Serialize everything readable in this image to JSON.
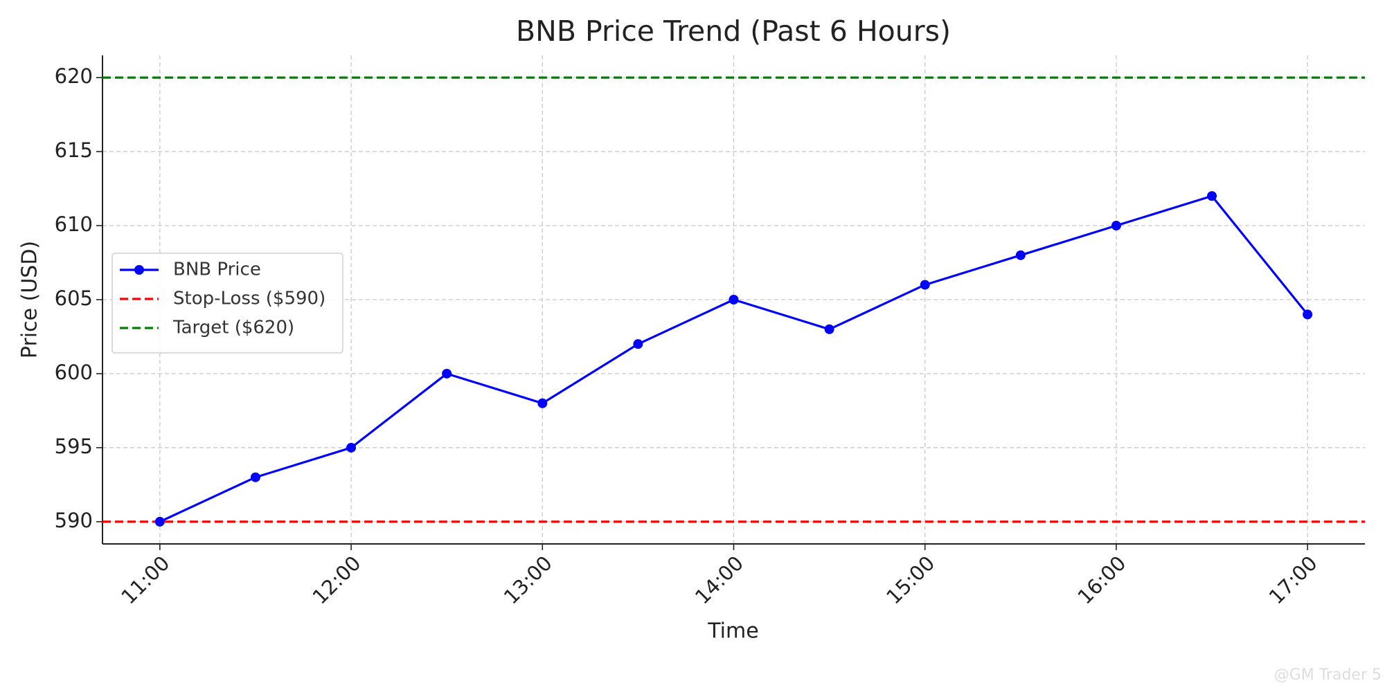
{
  "chart_data": {
    "type": "line",
    "title": "BNB Price Trend (Past 6 Hours)",
    "x_label": "Time",
    "y_label": "Price (USD)",
    "categories": [
      "11:00",
      null,
      "12:00",
      null,
      "13:00",
      null,
      "14:00",
      null,
      "15:00",
      null,
      "16:00",
      null,
      "17:00"
    ],
    "series": [
      {
        "name": "BNB Price",
        "color": "#0000ff",
        "values": [
          590,
          593,
          595,
          600,
          598,
          602,
          605,
          603,
          606,
          608,
          610,
          612,
          604
        ]
      }
    ],
    "hlines": [
      {
        "name": "Stop-Loss ($590)",
        "value": 590,
        "color": "#ff0000"
      },
      {
        "name": "Target ($620)",
        "value": 620,
        "color": "#008000"
      }
    ],
    "ylim": [
      588.5,
      621.5
    ],
    "yticks": [
      590,
      595,
      600,
      605,
      610,
      615,
      620
    ],
    "grid": true,
    "legend": "left",
    "watermark": "@GM Trader 5"
  }
}
